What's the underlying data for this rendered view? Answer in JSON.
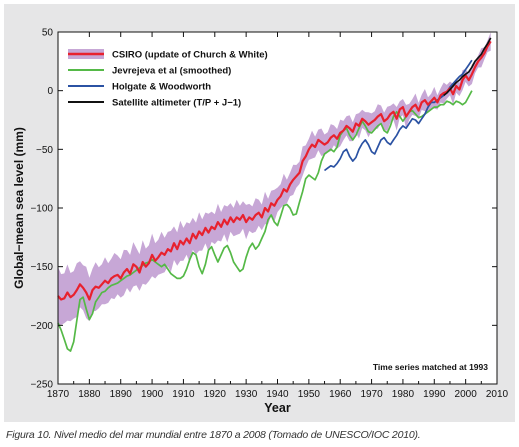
{
  "caption": "Figura 10. Nivel medio del mar mundial entre 1870 a 2008 (Tomado de UNESCO/IOC 2010).",
  "chart_data": {
    "type": "line",
    "title": "",
    "xlabel": "Year",
    "ylabel": "Global−mean sea level (mm)",
    "xlim": [
      1870,
      2010
    ],
    "ylim": [
      -250,
      50
    ],
    "xticks": [
      1870,
      1880,
      1890,
      1900,
      1910,
      1920,
      1930,
      1940,
      1950,
      1960,
      1970,
      1980,
      1990,
      2000,
      2010
    ],
    "yticks": [
      50,
      0,
      -50,
      -100,
      -150,
      -200,
      -250
    ],
    "grid": false,
    "legend_position": "top-left",
    "annotation": "Time series matched at 1993",
    "colors": {
      "csiro": "#e8212e",
      "csiro_band": "#c7a7d6",
      "jevrejeva": "#55b947",
      "holgate": "#2b52a3",
      "satellite": "#111111"
    },
    "series": [
      {
        "name": "CSIRO (update of Church & White)",
        "key": "csiro",
        "x": [
          1870,
          1871,
          1872,
          1873,
          1874,
          1875,
          1876,
          1877,
          1878,
          1879,
          1880,
          1881,
          1882,
          1883,
          1884,
          1885,
          1886,
          1887,
          1888,
          1889,
          1890,
          1891,
          1892,
          1893,
          1894,
          1895,
          1896,
          1897,
          1898,
          1899,
          1900,
          1901,
          1902,
          1903,
          1904,
          1905,
          1906,
          1907,
          1908,
          1909,
          1910,
          1911,
          1912,
          1913,
          1914,
          1915,
          1916,
          1917,
          1918,
          1919,
          1920,
          1921,
          1922,
          1923,
          1924,
          1925,
          1926,
          1927,
          1928,
          1929,
          1930,
          1931,
          1932,
          1933,
          1934,
          1935,
          1936,
          1937,
          1938,
          1939,
          1940,
          1941,
          1942,
          1943,
          1944,
          1945,
          1946,
          1947,
          1948,
          1949,
          1950,
          1951,
          1952,
          1953,
          1954,
          1955,
          1956,
          1957,
          1958,
          1959,
          1960,
          1961,
          1962,
          1963,
          1964,
          1965,
          1966,
          1967,
          1968,
          1969,
          1970,
          1971,
          1972,
          1973,
          1974,
          1975,
          1976,
          1977,
          1978,
          1979,
          1980,
          1981,
          1982,
          1983,
          1984,
          1985,
          1986,
          1987,
          1988,
          1989,
          1990,
          1991,
          1992,
          1993,
          1994,
          1995,
          1996,
          1997,
          1998,
          1999,
          2000,
          2001,
          2002,
          2003,
          2004,
          2005,
          2006,
          2007,
          2008
        ],
        "values": [
          -175,
          -178,
          -177,
          -172,
          -176,
          -174,
          -170,
          -165,
          -168,
          -172,
          -178,
          -170,
          -167,
          -168,
          -165,
          -162,
          -164,
          -160,
          -158,
          -157,
          -160,
          -155,
          -152,
          -156,
          -148,
          -150,
          -155,
          -146,
          -150,
          -147,
          -140,
          -145,
          -142,
          -138,
          -140,
          -135,
          -137,
          -130,
          -135,
          -128,
          -131,
          -126,
          -130,
          -122,
          -126,
          -120,
          -123,
          -117,
          -121,
          -116,
          -118,
          -112,
          -116,
          -110,
          -114,
          -108,
          -112,
          -108,
          -110,
          -106,
          -112,
          -108,
          -110,
          -106,
          -104,
          -108,
          -100,
          -103,
          -96,
          -98,
          -93,
          -90,
          -84,
          -86,
          -80,
          -76,
          -73,
          -70,
          -60,
          -56,
          -50,
          -46,
          -48,
          -42,
          -44,
          -46,
          -44,
          -40,
          -38,
          -41,
          -36,
          -34,
          -30,
          -32,
          -35,
          -28,
          -30,
          -24,
          -26,
          -29,
          -27,
          -25,
          -22,
          -20,
          -26,
          -24,
          -20,
          -18,
          -24,
          -16,
          -14,
          -22,
          -18,
          -14,
          -12,
          -17,
          -10,
          -8,
          -12,
          -9,
          -6,
          -10,
          -4,
          -2,
          -1,
          2,
          -3,
          4,
          1,
          9,
          13,
          9,
          14,
          20,
          25,
          28,
          32,
          38,
          42
        ]
      },
      {
        "name": "Jevrejeva et al (smoothed)",
        "key": "jevrejeva",
        "x": [
          1870,
          1871,
          1872,
          1873,
          1874,
          1875,
          1876,
          1877,
          1878,
          1879,
          1880,
          1881,
          1882,
          1883,
          1884,
          1885,
          1886,
          1887,
          1888,
          1889,
          1890,
          1891,
          1892,
          1893,
          1894,
          1895,
          1896,
          1897,
          1898,
          1899,
          1900,
          1901,
          1902,
          1903,
          1904,
          1905,
          1906,
          1907,
          1908,
          1909,
          1910,
          1911,
          1912,
          1913,
          1914,
          1915,
          1916,
          1917,
          1918,
          1919,
          1920,
          1921,
          1922,
          1923,
          1924,
          1925,
          1926,
          1927,
          1928,
          1929,
          1930,
          1931,
          1932,
          1933,
          1934,
          1935,
          1936,
          1937,
          1938,
          1939,
          1940,
          1941,
          1942,
          1943,
          1944,
          1945,
          1946,
          1947,
          1948,
          1949,
          1950,
          1951,
          1952,
          1953,
          1954,
          1955,
          1956,
          1957,
          1958,
          1959,
          1960,
          1961,
          1962,
          1963,
          1964,
          1965,
          1966,
          1967,
          1968,
          1969,
          1970,
          1971,
          1972,
          1973,
          1974,
          1975,
          1976,
          1977,
          1978,
          1979,
          1980,
          1981,
          1982,
          1983,
          1984,
          1985,
          1986,
          1987,
          1988,
          1989,
          1990,
          1991,
          1992,
          1993,
          1994,
          1995,
          1996,
          1997,
          1998,
          1999,
          2000,
          2001,
          2002
        ],
        "values": [
          -198,
          -204,
          -212,
          -220,
          -222,
          -214,
          -196,
          -178,
          -176,
          -186,
          -195,
          -190,
          -180,
          -176,
          -172,
          -171,
          -168,
          -166,
          -165,
          -164,
          -162,
          -160,
          -158,
          -157,
          -155,
          -153,
          -151,
          -149,
          -147,
          -146,
          -144,
          -146,
          -148,
          -150,
          -148,
          -152,
          -156,
          -158,
          -160,
          -160,
          -158,
          -152,
          -144,
          -138,
          -140,
          -150,
          -156,
          -148,
          -136,
          -133,
          -140,
          -146,
          -140,
          -134,
          -132,
          -138,
          -146,
          -150,
          -154,
          -152,
          -142,
          -134,
          -130,
          -135,
          -132,
          -126,
          -120,
          -110,
          -106,
          -112,
          -115,
          -107,
          -98,
          -97,
          -100,
          -106,
          -105,
          -95,
          -86,
          -75,
          -72,
          -74,
          -76,
          -70,
          -60,
          -54,
          -52,
          -50,
          -52,
          -48,
          -38,
          -34,
          -32,
          -38,
          -42,
          -38,
          -32,
          -26,
          -30,
          -35,
          -36,
          -33,
          -30,
          -28,
          -34,
          -36,
          -30,
          -22,
          -18,
          -22,
          -26,
          -22,
          -18,
          -17,
          -20,
          -23,
          -22,
          -20,
          -18,
          -16,
          -14,
          -14,
          -12,
          -12,
          -9,
          -10,
          -12,
          -9,
          -10,
          -12,
          -10,
          -5,
          0
        ]
      },
      {
        "name": "Holgate & Woodworth",
        "key": "holgate",
        "x": [
          1955,
          1956,
          1957,
          1958,
          1959,
          1960,
          1961,
          1962,
          1963,
          1964,
          1965,
          1966,
          1967,
          1968,
          1969,
          1970,
          1971,
          1972,
          1973,
          1974,
          1975,
          1976,
          1977,
          1978,
          1979,
          1980,
          1981,
          1982,
          1983,
          1984,
          1985,
          1986,
          1987,
          1988,
          1989,
          1990,
          1991,
          1992,
          1993,
          1994,
          1995,
          1996,
          1997,
          1998,
          1999,
          2000,
          2001,
          2002
        ],
        "values": [
          -68,
          -66,
          -64,
          -65,
          -62,
          -58,
          -52,
          -50,
          -56,
          -60,
          -57,
          -50,
          -45,
          -42,
          -46,
          -52,
          -54,
          -48,
          -42,
          -40,
          -44,
          -46,
          -42,
          -38,
          -33,
          -30,
          -32,
          -28,
          -24,
          -25,
          -28,
          -24,
          -20,
          -14,
          -10,
          -10,
          -8,
          -6,
          -4,
          -1,
          3,
          6,
          9,
          12,
          14,
          18,
          22,
          26
        ]
      },
      {
        "name": "Satellite altimeter (T/P + J−1)",
        "key": "satellite",
        "x": [
          1993,
          1994,
          1995,
          1996,
          1997,
          1998,
          1999,
          2000,
          2001,
          2002,
          2003,
          2004,
          2005,
          2006,
          2007,
          2008
        ],
        "values": [
          -4,
          -2,
          1,
          4,
          7,
          9,
          12,
          14,
          16,
          20,
          25,
          28,
          31,
          36,
          40,
          45
        ]
      }
    ]
  }
}
